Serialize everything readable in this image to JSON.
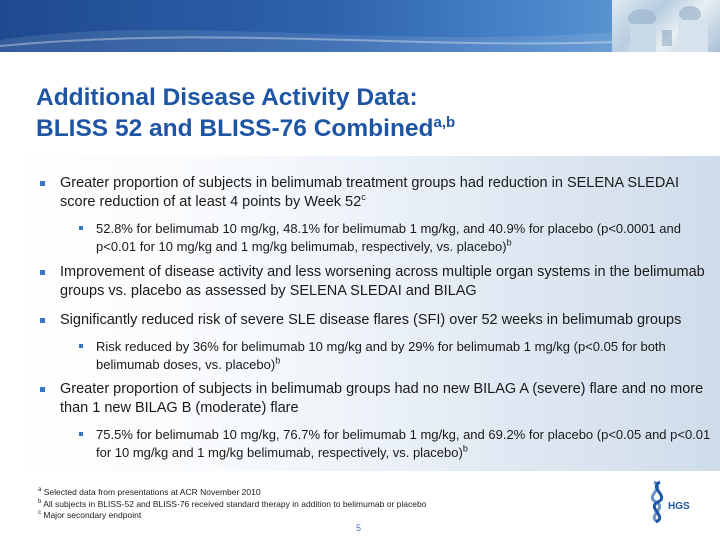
{
  "slide": {
    "title_line1": "Additional Disease Activity Data:",
    "title_line2": "BLISS 52 and BLISS-76 Combined",
    "title_sup": "a,b",
    "page_number": "5"
  },
  "bullets": [
    {
      "level": 1,
      "text": "Greater proportion of subjects in belimumab treatment groups had reduction in SELENA SLEDAI score reduction of at least 4 points by Week 52",
      "sup": "c"
    },
    {
      "level": 2,
      "text": "52.8% for belimumab 10 mg/kg, 48.1% for belimumab 1 mg/kg, and 40.9% for placebo (p<0.0001 and p<0.01 for 10 mg/kg and 1 mg/kg belimumab, respectively, vs. placebo)",
      "sup": "b"
    },
    {
      "level": 1,
      "text": "Improvement of disease activity and less worsening across multiple organ systems in the belimumab groups vs. placebo as assessed by SELENA SLEDAI and BILAG",
      "sup": ""
    },
    {
      "level": 1,
      "text": "Significantly reduced risk of severe SLE disease flares (SFI) over 52 weeks in belimumab groups",
      "sup": ""
    },
    {
      "level": 2,
      "text": "Risk reduced by 36% for belimumab 10 mg/kg and by 29% for belimumab 1 mg/kg (p<0.05 for both belimumab doses, vs. placebo)",
      "sup": "b"
    },
    {
      "level": 1,
      "text": "Greater proportion of subjects in belimumab groups had no new BILAG A (severe) flare and no more than 1 new BILAG B (moderate) flare",
      "sup": ""
    },
    {
      "level": 2,
      "text": "75.5% for belimumab 10 mg/kg, 76.7% for belimumab 1 mg/kg, and 69.2% for placebo (p<0.05 and p<0.01 for 10 mg/kg and 1 mg/kg belimumab, respectively, vs. placebo)",
      "sup": "b"
    }
  ],
  "footnotes": [
    {
      "mark": "a",
      "text": "Selected data from presentations at ACR November 2010"
    },
    {
      "mark": "b",
      "text": "All subjects in BLISS-52 and BLISS-76 received standard therapy in addition to belimumab or placebo"
    },
    {
      "mark": "c",
      "text": "Major secondary endpoint"
    }
  ],
  "logo": {
    "text": "HGS"
  },
  "colors": {
    "title": "#1f56a4",
    "bullet_marker": "#3b76c4",
    "banner": "#2d62ad"
  }
}
